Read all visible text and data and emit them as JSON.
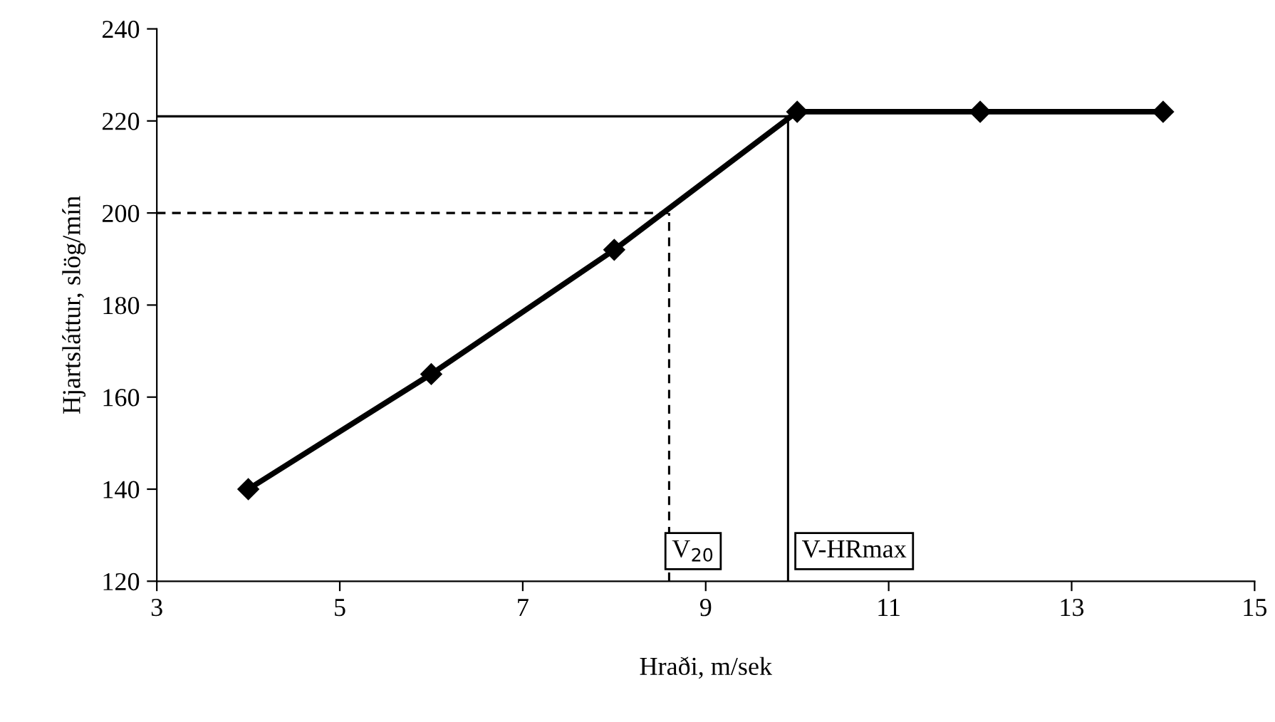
{
  "chart_data": {
    "type": "line",
    "xlabel": "Hraði, m/sek",
    "ylabel": "Hjartsláttur, slög/mín",
    "x": [
      4,
      6,
      8,
      10,
      12,
      14
    ],
    "series": [
      {
        "color": "#000000",
        "values": [
          140,
          165,
          192,
          222,
          222,
          222
        ]
      }
    ],
    "marker": "diamond",
    "line_style": "solid",
    "xlim": [
      3,
      15
    ],
    "xticks": [
      3,
      5,
      7,
      9,
      11,
      13,
      15
    ],
    "ylim": [
      120,
      240
    ],
    "yticks": [
      120,
      140,
      160,
      180,
      200,
      220,
      240
    ],
    "grid": false,
    "legend": false,
    "ref_lines": [
      {
        "axis": "y",
        "value": 200,
        "line_style": "dashed"
      },
      {
        "axis": "x",
        "value": 8.6,
        "line_style": "dashed",
        "label": "V$_{20}$"
      },
      {
        "axis": "y",
        "value": 221,
        "line_style": "solid"
      },
      {
        "axis": "x",
        "value": 9.9,
        "line_style": "solid",
        "label": "V-HRmax"
      }
    ]
  }
}
